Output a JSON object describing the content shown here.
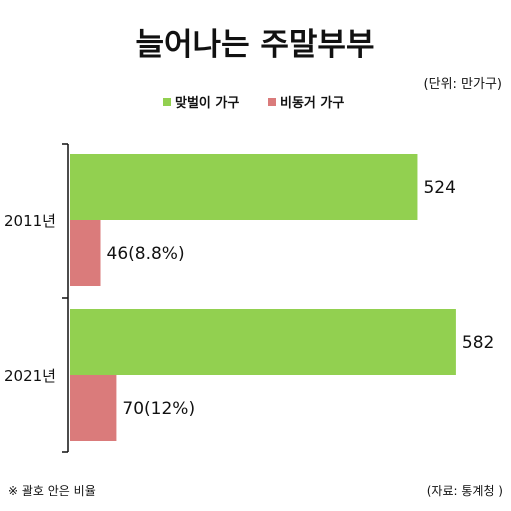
{
  "colors": {
    "married_dual_income": "#92D050",
    "separated": "#DA7B7B",
    "text": "#111111",
    "axis": "#111111"
  },
  "chart_data": {
    "type": "bar",
    "orientation": "horizontal",
    "title": "늘어나는 주말부부",
    "unit_note": "(단위: 만가구)",
    "categories": [
      "2011년",
      "2021년"
    ],
    "series": [
      {
        "name": "맞벌이 가구",
        "values": [
          524,
          582
        ],
        "labels": [
          "524",
          "582"
        ]
      },
      {
        "name": "비동거 가구",
        "values": [
          46,
          70
        ],
        "labels": [
          "46(8.8%)",
          "70(12%)"
        ]
      }
    ],
    "legend_position": "top",
    "xlim": [
      0,
      650
    ],
    "grid": false,
    "footnote": "※ 괄호 안은 비율",
    "source": "(자료: 통계청 )"
  }
}
